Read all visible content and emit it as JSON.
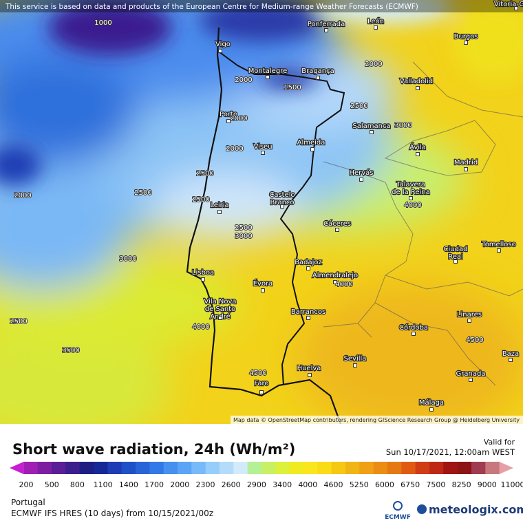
{
  "notice": "This service is based on data and products of the European Centre for Medium-range Weather Forecasts (ECMWF)",
  "map": {
    "cities": [
      [
        "Ponferrada"
      ],
      [
        "León"
      ],
      [
        "Vigo"
      ],
      [
        "Burgos"
      ],
      [
        "Montalegre"
      ],
      [
        "Bragança"
      ],
      [
        "Valladolid"
      ],
      [
        "Porto"
      ],
      [
        "Salamanca"
      ],
      [
        "Viseu"
      ],
      [
        "Almeida"
      ],
      [
        "Ávila"
      ],
      [
        "Madrid"
      ],
      [
        "Hervás"
      ],
      [
        "Talavera",
        "de la Reina"
      ],
      [
        "Castelo",
        "Branco"
      ],
      [
        "Leiria"
      ],
      [
        "Cáceres"
      ],
      [
        "Ciudad",
        "Real"
      ],
      [
        "Tomelloso"
      ],
      [
        "Badajoz"
      ],
      [
        "Almendralejo"
      ],
      [
        "Lisboa"
      ],
      [
        "Évora"
      ],
      [
        "Vila Nova",
        "de Santo",
        "André"
      ],
      [
        "Barrancos"
      ],
      [
        "Linares"
      ],
      [
        "Córdoba"
      ],
      [
        "Sevilla"
      ],
      [
        "Baza"
      ],
      [
        "Huelva"
      ],
      [
        "Granada"
      ],
      [
        "Faro"
      ],
      [
        "Málaga"
      ],
      [
        "Vitoria-G"
      ]
    ],
    "contour_labels": [
      1000,
      2000,
      2000,
      1500,
      2500,
      3000,
      2000,
      2000,
      2500,
      2500,
      2500,
      2000,
      2500,
      3000,
      4000,
      3000,
      4000,
      2500,
      4000,
      3500,
      4500,
      4500
    ],
    "attribution": "Map data © OpenStreetMap contributors, rendering GIScience Research Group @ Heidelberg University"
  },
  "legend": {
    "title": "Short wave radiation, 24h (Wh/m²)",
    "valid_label": "Valid for",
    "valid_time": "Sun 10/17/2021, 12:00am WEST",
    "colors": [
      "#c81ed2",
      "#a01eb4",
      "#7d1ea0",
      "#5a1e96",
      "#3c1e8c",
      "#1e1e82",
      "#142896",
      "#1e3cb4",
      "#1e50c8",
      "#2864d7",
      "#3278e6",
      "#4690f0",
      "#5aa5f5",
      "#78b9fa",
      "#96cdfa",
      "#b4dcfa",
      "#d2ebfa",
      "#b4f096",
      "#c8f064",
      "#dcf03c",
      "#f0eb1e",
      "#fae61e",
      "#fadc14",
      "#f5c814",
      "#f0b414",
      "#f0a014",
      "#eb8c14",
      "#e67814",
      "#e15a14",
      "#d23c14",
      "#be2814",
      "#a01414",
      "#8c1414",
      "#a03c50",
      "#c8787d",
      "#e6a0a5"
    ],
    "ticks": [
      200,
      500,
      800,
      1100,
      1400,
      1700,
      2000,
      2300,
      2600,
      2900,
      3400,
      4000,
      4600,
      5250,
      6000,
      6750,
      7500,
      8250,
      9000,
      11000
    ]
  },
  "footer": {
    "region": "Portugal",
    "model": "ECMWF IFS HRES (10 days) from 10/15/2021/00z",
    "ecmwf_logo": "ECMWF",
    "brand": "meteologix.com"
  }
}
